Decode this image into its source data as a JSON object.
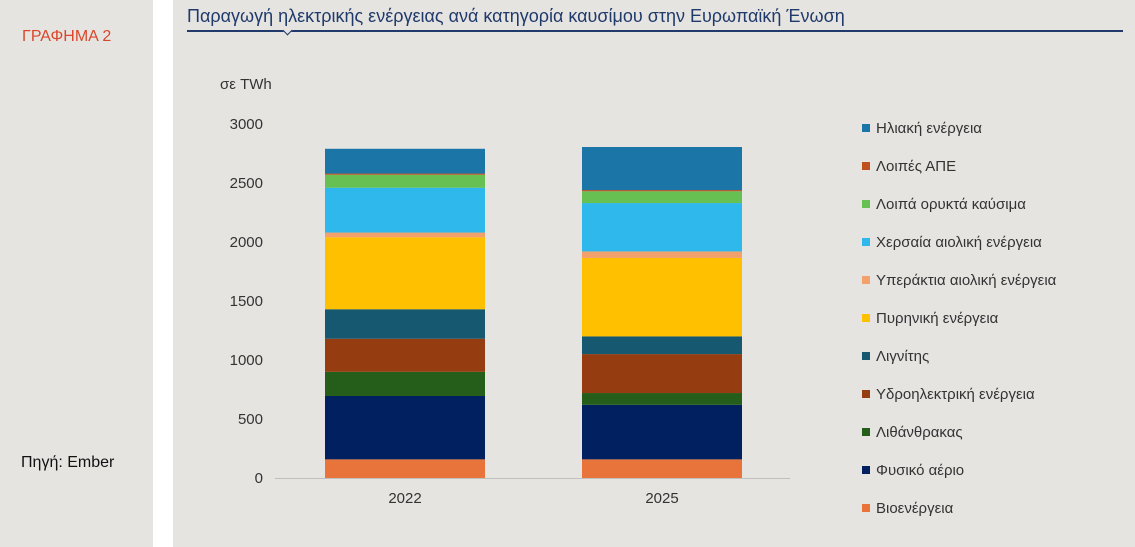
{
  "figure": {
    "label": "ΓΡΑΦΗΜΑ 2",
    "source": "Πηγή: Ember"
  },
  "chart_data": {
    "type": "bar",
    "stacked": true,
    "title": "Παραγωγή ηλεκτρικής ενέργειας ανά κατηγορία καυσίμου στην Ευρωπαϊκή Ένωση",
    "ylabel": "σε TWh",
    "xlabel": "",
    "categories": [
      "2022",
      "2025"
    ],
    "ylim": [
      0,
      3000
    ],
    "yticks": [
      0,
      500,
      1000,
      1500,
      2000,
      2500,
      3000
    ],
    "legend_position": "right",
    "series": [
      {
        "name": "Βιοενέργεια",
        "color": "#e8743b",
        "values": [
          158,
          158
        ]
      },
      {
        "name": "Φυσικό αέριο",
        "color": "#002060",
        "values": [
          537,
          462
        ]
      },
      {
        "name": "Λιθάνθρακας",
        "color": "#255e1b",
        "values": [
          205,
          100
        ]
      },
      {
        "name": "Υδροηλεκτρική ενέργεια",
        "color": "#963c11",
        "values": [
          280,
          330
        ]
      },
      {
        "name": "Λιγνίτης",
        "color": "#155870",
        "values": [
          250,
          150
        ]
      },
      {
        "name": "Πυρηνική ενέργεια",
        "color": "#ffc000",
        "values": [
          610,
          665
        ]
      },
      {
        "name": "Υπεράκτια αιολική ενέργεια",
        "color": "#f2a06c",
        "values": [
          40,
          55
        ]
      },
      {
        "name": "Χερσαία αιολική ενέργεια",
        "color": "#2fb8ec",
        "values": [
          380,
          410
        ]
      },
      {
        "name": "Λοιπά ορυκτά καύσιμα",
        "color": "#66c152",
        "values": [
          110,
          100
        ]
      },
      {
        "name": "Λοιπές ΑΠΕ",
        "color": "#c0501e",
        "values": [
          10,
          10
        ]
      },
      {
        "name": "Ηλιακή ενέργεια",
        "color": "#1b75a6",
        "values": [
          210,
          365
        ]
      }
    ]
  }
}
